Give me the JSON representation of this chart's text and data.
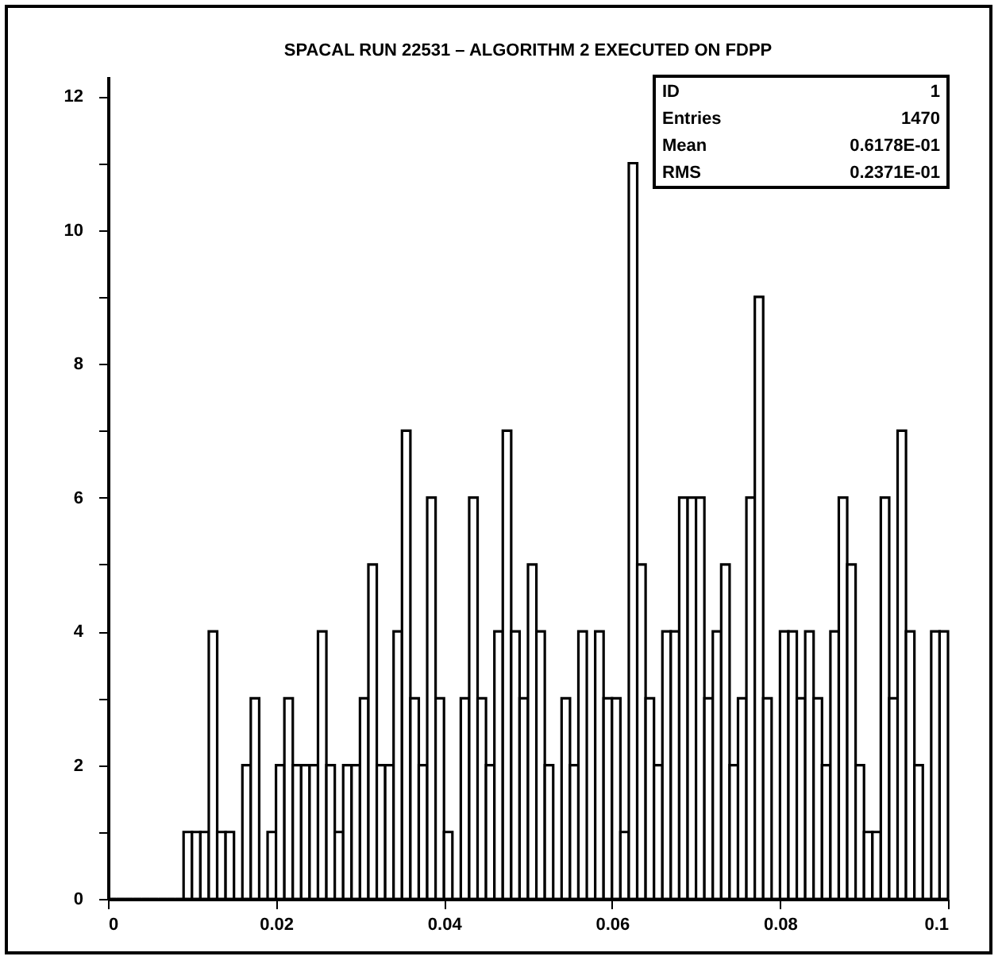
{
  "chart_data": {
    "type": "histogram",
    "title": "SPACAL RUN 22531 – ALGORITHM 2 EXECUTED ON FDPP",
    "bins": [
      0,
      0.001,
      0.002,
      0.003,
      0.004,
      0.005,
      0.006,
      0.007,
      0.008,
      0.009,
      0.01,
      0.011,
      0.012,
      0.013,
      0.014,
      0.015,
      0.016,
      0.017,
      0.018,
      0.019,
      0.02,
      0.021,
      0.022,
      0.023,
      0.024,
      0.025,
      0.026,
      0.027,
      0.028,
      0.029,
      0.03,
      0.031,
      0.032,
      0.033,
      0.034,
      0.035,
      0.036,
      0.037,
      0.038,
      0.039,
      0.04,
      0.041,
      0.042,
      0.043,
      0.044,
      0.045,
      0.046,
      0.047,
      0.048,
      0.049,
      0.05,
      0.051,
      0.052,
      0.053,
      0.054,
      0.055,
      0.056,
      0.057,
      0.058,
      0.059,
      0.06,
      0.061,
      0.062,
      0.063,
      0.064,
      0.065,
      0.066,
      0.067,
      0.068,
      0.069,
      0.07,
      0.071,
      0.072,
      0.073,
      0.074,
      0.075,
      0.076,
      0.077,
      0.078,
      0.079,
      0.08,
      0.081,
      0.082,
      0.083,
      0.084,
      0.085,
      0.086,
      0.087,
      0.088,
      0.089,
      0.09,
      0.091,
      0.092,
      0.093,
      0.094,
      0.095,
      0.096,
      0.097,
      0.098,
      0.099,
      0.1
    ],
    "values": [
      0,
      0,
      0,
      0,
      0,
      0,
      0,
      0,
      0,
      1,
      1,
      1,
      4,
      1,
      1,
      0,
      2,
      3,
      0,
      1,
      2,
      3,
      2,
      2,
      2,
      4,
      2,
      1,
      2,
      2,
      3,
      5,
      2,
      2,
      4,
      7,
      3,
      2,
      6,
      3,
      1,
      0,
      3,
      6,
      3,
      2,
      4,
      7,
      4,
      3,
      5,
      4,
      2,
      0,
      3,
      2,
      4,
      0,
      4,
      3,
      3,
      1,
      11,
      5,
      3,
      2,
      4,
      4,
      6,
      6,
      6,
      3,
      4,
      5,
      2,
      3,
      6,
      9,
      3,
      0,
      4,
      4,
      3,
      4,
      3,
      2,
      4,
      6,
      5,
      2,
      1,
      1,
      6,
      3,
      7,
      4,
      2,
      0,
      4,
      4
    ],
    "color": "#000000",
    "xlim": [
      0,
      0.1
    ],
    "xticks": [
      0,
      0.02,
      0.04,
      0.06,
      0.08,
      0.1
    ],
    "ylim": [
      0,
      12.3
    ],
    "yticks": [
      0,
      {
        "value": 1,
        "label": null
      },
      2,
      {
        "value": 3,
        "label": null
      },
      4,
      {
        "value": 5,
        "label": null
      },
      6,
      {
        "value": 7,
        "label": null
      },
      8,
      {
        "value": 9,
        "label": null
      },
      10,
      {
        "value": 11,
        "label": null
      },
      12
    ],
    "annotations": [
      "ID",
      "1",
      "Entries",
      "1470",
      "Mean",
      "0.6178E-01",
      "RMS",
      "0.2371E-01"
    ]
  }
}
